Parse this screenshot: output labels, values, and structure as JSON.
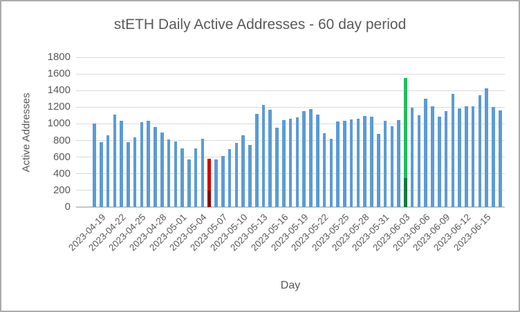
{
  "chart_data": {
    "type": "bar",
    "title": "stETH Daily Active Addresses - 60 day period",
    "xlabel": "Day",
    "ylabel": "Active Addresses",
    "ylim": [
      0,
      1800
    ],
    "ytick_step": 200,
    "grid": true,
    "legend": false,
    "bar_color": "#5b9bd5",
    "gridline_color": "#d9d9d9",
    "axis_text_color": "#595959",
    "xtick_every": 3,
    "x_tick_labels": [
      "2023-04-19",
      "2023-04-22",
      "2023-04-25",
      "2023-04-28",
      "2023-05-01",
      "2023-05-04",
      "2023-05-07",
      "2023-05-10",
      "2023-05-13",
      "2023-05-16",
      "2023-05-19",
      "2023-05-22",
      "2023-05-25",
      "2023-05-28",
      "2023-05-31",
      "2023-06-03",
      "2023-06-06",
      "2023-06-09",
      "2023-06-12",
      "2023-06-15"
    ],
    "categories": [
      "2023-04-19",
      "2023-04-20",
      "2023-04-21",
      "2023-04-22",
      "2023-04-23",
      "2023-04-24",
      "2023-04-25",
      "2023-04-26",
      "2023-04-27",
      "2023-04-28",
      "2023-04-29",
      "2023-04-30",
      "2023-05-01",
      "2023-05-02",
      "2023-05-03",
      "2023-05-04",
      "2023-05-05",
      "2023-05-06",
      "2023-05-07",
      "2023-05-08",
      "2023-05-09",
      "2023-05-10",
      "2023-05-11",
      "2023-05-12",
      "2023-05-13",
      "2023-05-14",
      "2023-05-15",
      "2023-05-16",
      "2023-05-17",
      "2023-05-18",
      "2023-05-19",
      "2023-05-20",
      "2023-05-21",
      "2023-05-22",
      "2023-05-23",
      "2023-05-24",
      "2023-05-25",
      "2023-05-26",
      "2023-05-27",
      "2023-05-28",
      "2023-05-29",
      "2023-05-30",
      "2023-05-31",
      "2023-06-01",
      "2023-06-02",
      "2023-06-03",
      "2023-06-04",
      "2023-06-05",
      "2023-06-06",
      "2023-06-07",
      "2023-06-08",
      "2023-06-09",
      "2023-06-10",
      "2023-06-11",
      "2023-06-12",
      "2023-06-13",
      "2023-06-14",
      "2023-06-15",
      "2023-06-16",
      "2023-06-17",
      "2023-06-18"
    ],
    "values": [
      1000,
      780,
      860,
      1110,
      1040,
      780,
      840,
      1020,
      1035,
      960,
      900,
      810,
      790,
      705,
      575,
      705,
      820,
      580,
      575,
      610,
      695,
      775,
      865,
      745,
      1120,
      1225,
      1170,
      950,
      1045,
      1060,
      1075,
      1150,
      1180,
      1110,
      890,
      820,
      1025,
      1035,
      1055,
      1065,
      1095,
      1085,
      880,
      1035,
      970,
      1045,
      1555,
      1195,
      1105,
      1305,
      1215,
      1090,
      1150,
      1360,
      1185,
      1215,
      1215,
      1345,
      1430,
      1200,
      1160
    ],
    "highlights": [
      {
        "name": "red-highlight-bar",
        "index": 17,
        "date": "2023-05-06",
        "value": 580,
        "top_color": "#d40000",
        "bottom_color": "#8e0000",
        "bottom_value": 200
      },
      {
        "name": "green-highlight-bar",
        "index": 46,
        "date": "2023-06-04",
        "value": 1555,
        "top_color": "#1fbe5a",
        "bottom_color": "#0e7c3c",
        "bottom_value": 350
      }
    ]
  }
}
